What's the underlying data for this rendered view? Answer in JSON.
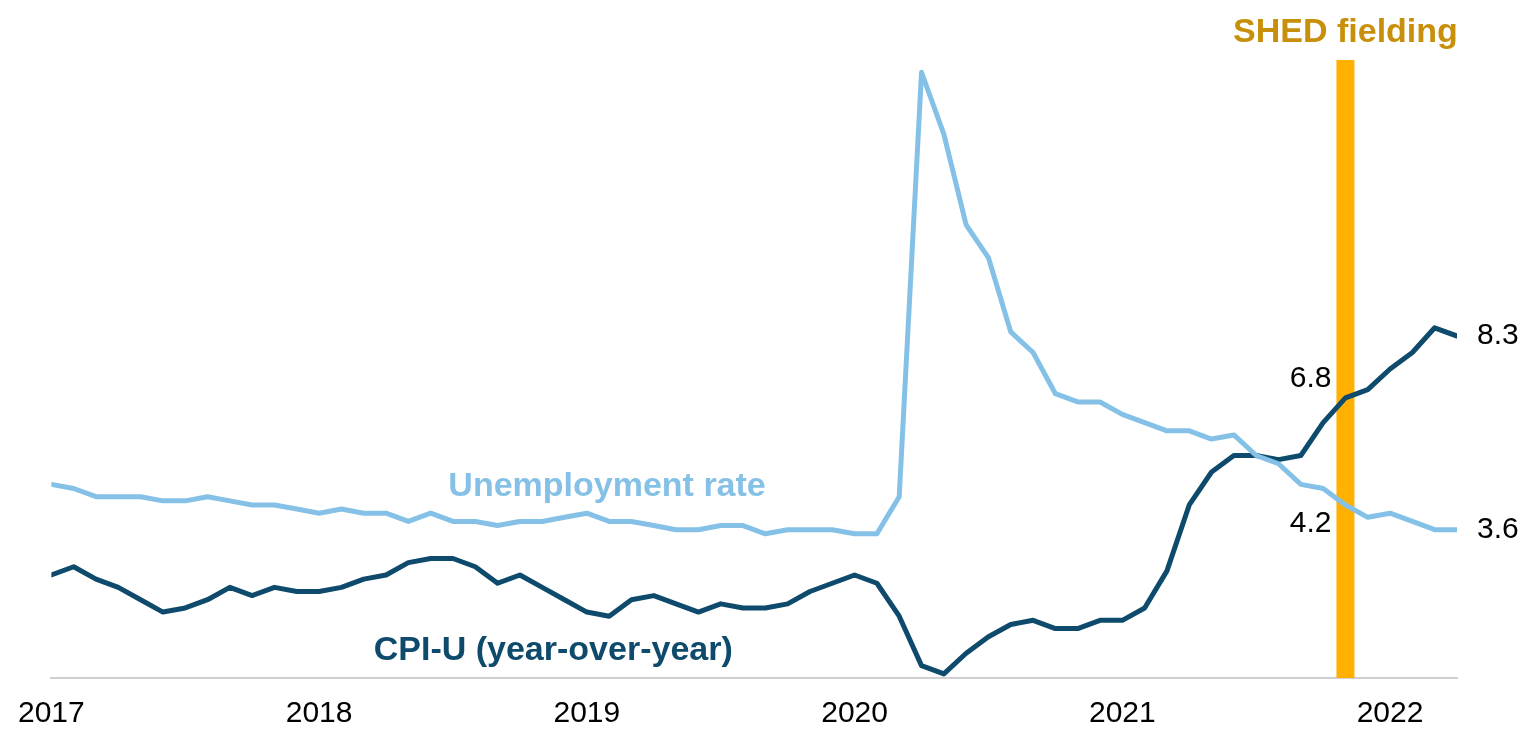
{
  "chart_data": {
    "type": "line",
    "x": [
      "2017-01",
      "2017-02",
      "2017-03",
      "2017-04",
      "2017-05",
      "2017-06",
      "2017-07",
      "2017-08",
      "2017-09",
      "2017-10",
      "2017-11",
      "2017-12",
      "2018-01",
      "2018-02",
      "2018-03",
      "2018-04",
      "2018-05",
      "2018-06",
      "2018-07",
      "2018-08",
      "2018-09",
      "2018-10",
      "2018-11",
      "2018-12",
      "2019-01",
      "2019-02",
      "2019-03",
      "2019-04",
      "2019-05",
      "2019-06",
      "2019-07",
      "2019-08",
      "2019-09",
      "2019-10",
      "2019-11",
      "2019-12",
      "2020-01",
      "2020-02",
      "2020-03",
      "2020-04",
      "2020-05",
      "2020-06",
      "2020-07",
      "2020-08",
      "2020-09",
      "2020-10",
      "2020-11",
      "2020-12",
      "2021-01",
      "2021-02",
      "2021-03",
      "2021-04",
      "2021-05",
      "2021-06",
      "2021-07",
      "2021-08",
      "2021-09",
      "2021-10",
      "2021-11",
      "2021-12",
      "2022-01",
      "2022-02",
      "2022-03",
      "2022-04"
    ],
    "series": [
      {
        "name": "Unemployment rate",
        "color": "#85c1e6",
        "values": [
          4.7,
          4.6,
          4.4,
          4.4,
          4.4,
          4.3,
          4.3,
          4.4,
          4.3,
          4.2,
          4.2,
          4.1,
          4.0,
          4.1,
          4.0,
          4.0,
          3.8,
          4.0,
          3.8,
          3.8,
          3.7,
          3.8,
          3.8,
          3.9,
          4.0,
          3.8,
          3.8,
          3.7,
          3.6,
          3.6,
          3.7,
          3.7,
          3.5,
          3.6,
          3.6,
          3.6,
          3.5,
          3.5,
          4.4,
          14.7,
          13.2,
          11.0,
          10.2,
          8.4,
          7.9,
          6.9,
          6.7,
          6.7,
          6.4,
          6.2,
          6.0,
          6.0,
          5.8,
          5.9,
          5.4,
          5.2,
          4.7,
          4.6,
          4.2,
          3.9,
          4.0,
          3.8,
          3.6,
          3.6
        ],
        "value_labels": [
          null,
          null,
          null,
          null,
          null,
          null,
          null,
          null,
          null,
          null,
          null,
          null,
          null,
          null,
          null,
          null,
          null,
          null,
          null,
          null,
          null,
          null,
          null,
          null,
          null,
          null,
          null,
          null,
          null,
          null,
          null,
          null,
          null,
          null,
          null,
          null,
          null,
          null,
          null,
          null,
          null,
          null,
          null,
          null,
          null,
          null,
          null,
          null,
          null,
          null,
          null,
          null,
          null,
          null,
          null,
          null,
          null,
          null,
          "4.2",
          null,
          null,
          null,
          null,
          "3.6"
        ]
      },
      {
        "name": "CPI-U (year-over-year)",
        "color": "#0d4a6b",
        "values": [
          2.5,
          2.7,
          2.4,
          2.2,
          1.9,
          1.6,
          1.7,
          1.9,
          2.2,
          2.0,
          2.2,
          2.1,
          2.1,
          2.2,
          2.4,
          2.5,
          2.8,
          2.9,
          2.9,
          2.7,
          2.3,
          2.5,
          2.2,
          1.9,
          1.6,
          1.5,
          1.9,
          2.0,
          1.8,
          1.6,
          1.8,
          1.7,
          1.7,
          1.8,
          2.1,
          2.3,
          2.5,
          2.3,
          1.5,
          0.3,
          0.1,
          0.6,
          1.0,
          1.3,
          1.4,
          1.2,
          1.2,
          1.4,
          1.4,
          1.7,
          2.6,
          4.2,
          5.0,
          5.4,
          5.4,
          5.3,
          5.4,
          6.2,
          6.8,
          7.0,
          7.5,
          7.9,
          8.5,
          8.3
        ],
        "value_labels": [
          null,
          null,
          null,
          null,
          null,
          null,
          null,
          null,
          null,
          null,
          null,
          null,
          null,
          null,
          null,
          null,
          null,
          null,
          null,
          null,
          null,
          null,
          null,
          null,
          null,
          null,
          null,
          null,
          null,
          null,
          null,
          null,
          null,
          null,
          null,
          null,
          null,
          null,
          null,
          null,
          null,
          null,
          null,
          null,
          null,
          null,
          null,
          null,
          null,
          null,
          null,
          null,
          null,
          null,
          null,
          null,
          null,
          null,
          "6.8",
          null,
          null,
          null,
          null,
          "8.3"
        ]
      }
    ],
    "xlim": [
      "2017-01",
      "2022-04"
    ],
    "xticks": [
      {
        "value": "2017-01",
        "label": "2017"
      },
      {
        "value": "2018-01",
        "label": "2018"
      },
      {
        "value": "2019-01",
        "label": "2019"
      },
      {
        "value": "2020-01",
        "label": "2020"
      },
      {
        "value": "2021-01",
        "label": "2021"
      },
      {
        "value": "2022-01",
        "label": "2022"
      }
    ],
    "ylim": [
      0,
      15
    ],
    "tick_labels": "x",
    "grid": false,
    "legend": false,
    "marker": "none",
    "line_style": "solid",
    "ref_lines": [
      {
        "axis": "x",
        "value": "2021-11",
        "label": "SHED fielding",
        "color": "#ffb000"
      }
    ]
  }
}
